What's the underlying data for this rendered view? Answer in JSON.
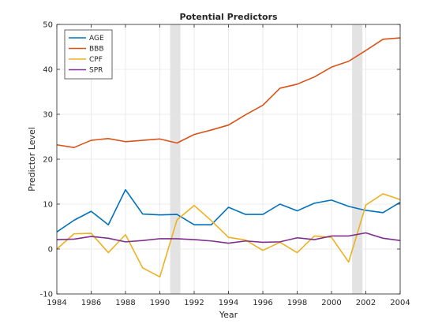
{
  "chart_data": {
    "type": "line",
    "title": "Potential Predictors",
    "xlabel": "Year",
    "ylabel": "Predictor Level",
    "xlim": [
      1984,
      2004
    ],
    "ylim": [
      -10,
      50
    ],
    "xticks": [
      1984,
      1986,
      1988,
      1990,
      1992,
      1994,
      1996,
      1998,
      2000,
      2002,
      2004
    ],
    "yticks": [
      -10,
      0,
      10,
      20,
      30,
      40,
      50
    ],
    "grid": true,
    "legend_position": "top-left",
    "shaded_periods": [
      [
        1990.6,
        1991.2
      ],
      [
        2001.2,
        2001.8
      ]
    ],
    "x": [
      1984,
      1985,
      1986,
      1987,
      1988,
      1989,
      1990,
      1991,
      1992,
      1993,
      1994,
      1995,
      1996,
      1997,
      1998,
      1999,
      2000,
      2001,
      2002,
      2003,
      2004
    ],
    "series": [
      {
        "name": "AGE",
        "color": "#0072BD",
        "values": [
          3.8,
          6.4,
          8.4,
          5.4,
          13.2,
          7.8,
          7.6,
          7.7,
          5.4,
          5.4,
          9.3,
          7.7,
          7.7,
          10.0,
          8.5,
          10.2,
          10.9,
          9.5,
          8.6,
          8.1,
          10.4
        ]
      },
      {
        "name": "BBB",
        "color": "#D95319",
        "values": [
          23.2,
          22.6,
          24.2,
          24.6,
          23.9,
          24.2,
          24.5,
          23.6,
          25.5,
          26.5,
          27.6,
          29.9,
          32.0,
          35.8,
          36.7,
          38.3,
          40.5,
          41.8,
          44.2,
          46.7,
          47.0
        ]
      },
      {
        "name": "CPF",
        "color": "#EDB120",
        "values": [
          0.0,
          3.4,
          3.5,
          -0.8,
          3.2,
          -4.2,
          -6.2,
          6.5,
          9.7,
          6.3,
          2.6,
          2.0,
          -0.3,
          1.5,
          -0.8,
          2.9,
          2.6,
          -2.9,
          9.8,
          12.3,
          11.0
        ]
      },
      {
        "name": "SPR",
        "color": "#7E2F8E",
        "values": [
          2.1,
          2.2,
          2.8,
          2.4,
          1.6,
          1.9,
          2.3,
          2.3,
          2.1,
          1.8,
          1.3,
          1.8,
          1.5,
          1.6,
          2.5,
          2.1,
          2.9,
          2.9,
          3.6,
          2.4,
          1.9
        ]
      }
    ]
  }
}
